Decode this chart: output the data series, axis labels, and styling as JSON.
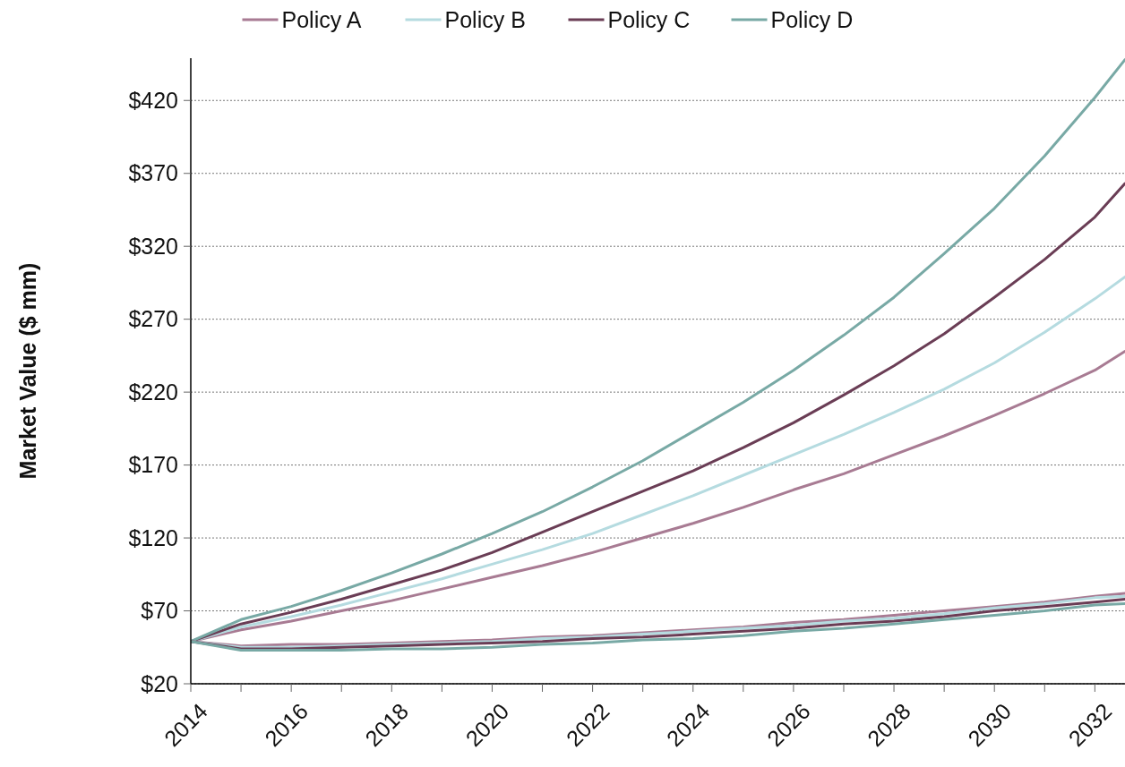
{
  "chart_data": {
    "type": "line",
    "ylabel": "Market Value ($ mm)",
    "x": [
      2014,
      2015,
      2016,
      2017,
      2018,
      2019,
      2020,
      2021,
      2022,
      2023,
      2024,
      2025,
      2026,
      2027,
      2028,
      2029,
      2030,
      2031,
      2032,
      2032.6
    ],
    "xlim": [
      2014,
      2032.6
    ],
    "xticks": [
      2014,
      {
        "value": 2015,
        "label": null
      },
      2016,
      {
        "value": 2017,
        "label": null
      },
      2018,
      {
        "value": 2019,
        "label": null
      },
      2020,
      {
        "value": 2021,
        "label": null
      },
      2022,
      {
        "value": 2023,
        "label": null
      },
      2024,
      {
        "value": 2025,
        "label": null
      },
      2026,
      {
        "value": 2027,
        "label": null
      },
      2028,
      {
        "value": 2029,
        "label": null
      },
      2030,
      {
        "value": 2031,
        "label": null
      },
      2032
    ],
    "ylim": [
      20,
      449
    ],
    "yticks": [
      {
        "value": 20,
        "label": "$20"
      },
      {
        "value": 70,
        "label": "$70"
      },
      {
        "value": 120,
        "label": "$120"
      },
      {
        "value": 170,
        "label": "$170"
      },
      {
        "value": 220,
        "label": "$220"
      },
      {
        "value": 270,
        "label": "$270"
      },
      {
        "value": 320,
        "label": "$320"
      },
      {
        "value": 370,
        "label": "$370"
      },
      {
        "value": 420,
        "label": "$420"
      }
    ],
    "grid": "y",
    "legend": "top",
    "line_style": "solid",
    "series": [
      {
        "name": "Policy A",
        "color": "#a87b93",
        "values": [
          49,
          57,
          63,
          70,
          77,
          85,
          93,
          101,
          110,
          120,
          130,
          141,
          153,
          164,
          177,
          190,
          204,
          219,
          235,
          248
        ]
      },
      {
        "name": "Policy B",
        "color": "#b5dbe0",
        "values": [
          49,
          59,
          66,
          74,
          83,
          92,
          102,
          112,
          123,
          136,
          149,
          163,
          177,
          191,
          206,
          222,
          240,
          261,
          284,
          299
        ]
      },
      {
        "name": "Policy C",
        "color": "#6a3d55",
        "values": [
          49,
          61,
          69,
          78,
          88,
          98,
          110,
          124,
          138,
          152,
          166,
          182,
          199,
          218,
          238,
          260,
          285,
          311,
          340,
          363
        ]
      },
      {
        "name": "Policy D",
        "color": "#78a9a5",
        "values": [
          49,
          64,
          73,
          84,
          96,
          109,
          123,
          138,
          155,
          173,
          193,
          213,
          235,
          259,
          285,
          315,
          346,
          382,
          422,
          448
        ]
      },
      {
        "color": "#a87b93",
        "values": [
          49,
          46,
          47,
          47,
          48,
          49,
          50,
          52,
          53,
          55,
          57,
          59,
          62,
          64,
          67,
          70,
          73,
          76,
          80,
          82
        ]
      },
      {
        "color": "#b5dbe0",
        "values": [
          49,
          45,
          45,
          46,
          47,
          48,
          49,
          51,
          52,
          54,
          56,
          58,
          60,
          63,
          65,
          68,
          72,
          75,
          79,
          80
        ]
      },
      {
        "color": "#6a3d55",
        "values": [
          49,
          44,
          44,
          45,
          46,
          47,
          48,
          49,
          51,
          52,
          54,
          56,
          58,
          61,
          63,
          66,
          70,
          73,
          76,
          78
        ]
      },
      {
        "color": "#78a9a5",
        "values": [
          49,
          43,
          43,
          43,
          44,
          44,
          45,
          47,
          48,
          50,
          51,
          53,
          56,
          58,
          61,
          64,
          67,
          70,
          74,
          75
        ]
      }
    ]
  }
}
